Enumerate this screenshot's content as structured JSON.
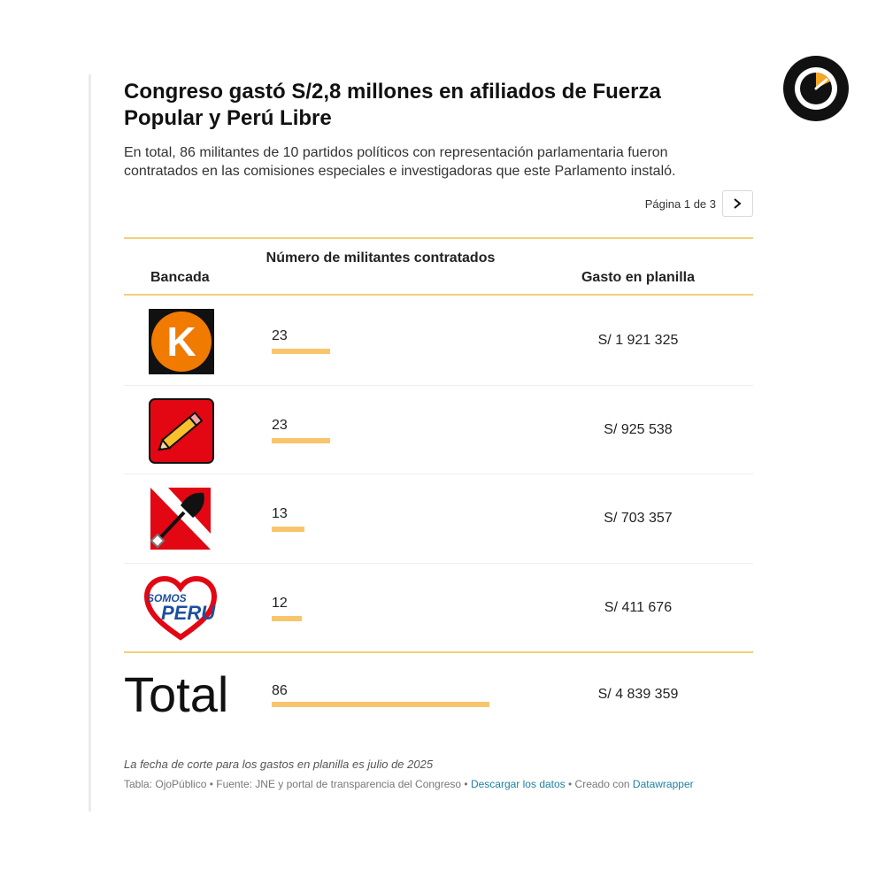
{
  "header": {
    "title": "Congreso gastó S/2,8 millones en afiliados de Fuerza Popular y Perú Libre",
    "subtitle": "En total, 86 militantes de 10 partidos políticos con representación parlamentaria fueron contratados en las comisiones especiales e investigadoras que este Parlamento instaló."
  },
  "pager": {
    "label": "Página 1 de 3",
    "next_icon": "chevron-right-icon"
  },
  "chart_data": {
    "type": "table",
    "columns": [
      "Bancada",
      "Número de militantes contratados",
      "Gasto en planilla"
    ],
    "bar_max": 86,
    "rows": [
      {
        "logo": "fuerza-popular-logo",
        "logo_text": "K",
        "count": 23,
        "count_label": "23",
        "gasto": "S/ 1 921 325"
      },
      {
        "logo": "peru-libre-logo",
        "count": 23,
        "count_label": "23",
        "gasto": "S/ 925 538"
      },
      {
        "logo": "accion-popular-logo",
        "count": 13,
        "count_label": "13",
        "gasto": "S/ 703 357"
      },
      {
        "logo": "somos-peru-logo",
        "logo_text": [
          "SOMOS",
          "PERU"
        ],
        "count": 12,
        "count_label": "12",
        "gasto": "S/ 411 676"
      }
    ],
    "total": {
      "label": "Total",
      "count": 86,
      "count_label": "86",
      "gasto": "S/ 4 839 359"
    }
  },
  "footer": {
    "note": "La fecha de corte para los gastos en planilla es julio de 2025",
    "source_prefix": "Tabla: OjoPúblico • Fuente: JNE y portal de transparencia del Congreso • ",
    "download_link": "Descargar los datos",
    "separator": " • Creado con ",
    "datawrapper_link": "Datawrapper"
  },
  "colors": {
    "bar": "#f8c56d",
    "rule": "#f3cf7c",
    "link": "#1d81a2",
    "brand_accent": "#f5a623"
  }
}
